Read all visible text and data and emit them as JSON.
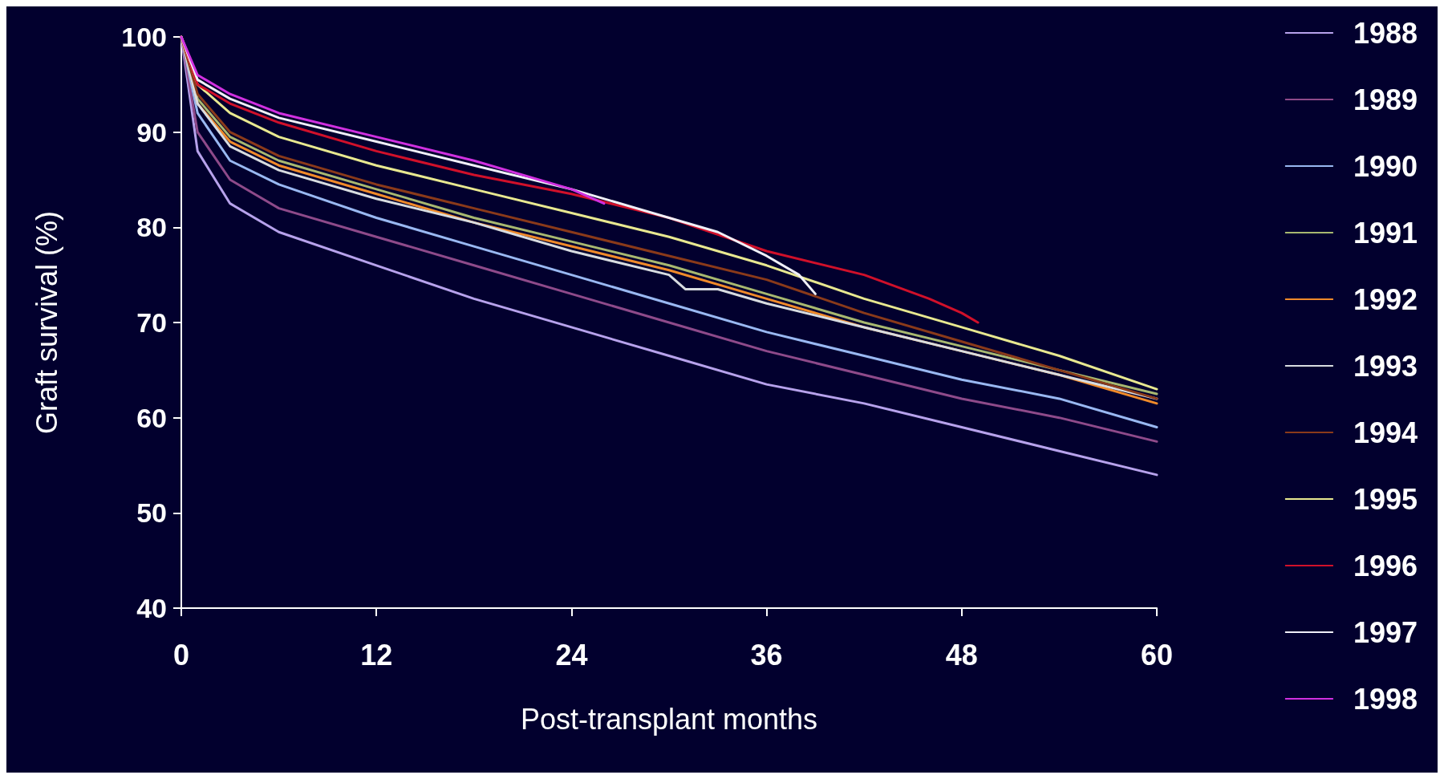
{
  "chart_data": {
    "type": "line",
    "xlabel": "Post-transplant months",
    "ylabel": "Graft survival (%)",
    "xlim": [
      0,
      60
    ],
    "xticks": [
      0,
      12,
      24,
      36,
      48,
      60
    ],
    "ylim": [
      40,
      100
    ],
    "yticks": [
      40,
      50,
      60,
      70,
      80,
      90,
      100
    ],
    "grid": false,
    "legend": "right",
    "marker": "none",
    "line_style": "solid",
    "x": [
      0,
      1,
      3,
      6,
      12,
      18,
      24,
      30,
      36,
      42,
      48,
      54,
      60
    ],
    "series": [
      {
        "name": "1988",
        "color": "#b7a2ec",
        "values": [
          100,
          88,
          82.5,
          79.5,
          76,
          72.5,
          69.5,
          66.5,
          63.5,
          61.5,
          59,
          56.5,
          54
        ]
      },
      {
        "name": "1989",
        "color": "#8e4a8a",
        "values": [
          100,
          90,
          85,
          82,
          79,
          76,
          73,
          70,
          67,
          64.5,
          62,
          60,
          57.5
        ]
      },
      {
        "name": "1990",
        "color": "#99b8f2",
        "values": [
          100,
          92,
          87,
          84.5,
          81,
          78,
          75,
          72,
          69,
          66.5,
          64,
          62,
          59
        ]
      },
      {
        "name": "1991",
        "color": "#a8b870",
        "values": [
          100,
          93.5,
          89.5,
          87,
          84,
          81,
          78.5,
          76,
          73,
          70,
          67.5,
          65,
          62.5
        ]
      },
      {
        "name": "1992",
        "color": "#f08a2a",
        "values": [
          100,
          93,
          89,
          86.5,
          83.5,
          80.5,
          78,
          75.5,
          72.5,
          69.5,
          67,
          64.5,
          61.5
        ]
      },
      {
        "name": "1993",
        "color": "#d8dce0",
        "x": [
          0,
          1,
          3,
          6,
          12,
          18,
          24,
          30,
          31,
          33,
          36,
          42,
          48,
          54,
          60
        ],
        "values": [
          100,
          93,
          88.5,
          86,
          83,
          80.5,
          77.5,
          75,
          73.5,
          73.5,
          72,
          69.5,
          67,
          64.5,
          62
        ]
      },
      {
        "name": "1994",
        "color": "#8a3a1a",
        "values": [
          100,
          94,
          90,
          87.5,
          84.5,
          82,
          79.5,
          77,
          74.5,
          71,
          68,
          65,
          62
        ]
      },
      {
        "name": "1995",
        "color": "#e8e890",
        "values": [
          100,
          95,
          92,
          89.5,
          86.5,
          84,
          81.5,
          79,
          76,
          72.5,
          69.5,
          66.5,
          63
        ]
      },
      {
        "name": "1996",
        "color": "#d0102a",
        "x": [
          0,
          1,
          3,
          6,
          12,
          18,
          24,
          30,
          36,
          42,
          46,
          48,
          49
        ],
        "values": [
          100,
          95,
          93,
          91,
          88,
          85.5,
          83.5,
          81,
          77.5,
          75,
          72.5,
          71,
          70
        ]
      },
      {
        "name": "1997",
        "color": "#f0f0f8",
        "x": [
          0,
          1,
          3,
          6,
          12,
          18,
          24,
          30,
          33,
          36,
          38,
          39
        ],
        "values": [
          100,
          95.5,
          93.5,
          91.5,
          89,
          86.5,
          84,
          81,
          79.5,
          77,
          75,
          73
        ]
      },
      {
        "name": "1998",
        "color": "#d030e0",
        "x": [
          0,
          1,
          3,
          6,
          12,
          18,
          24,
          26
        ],
        "values": [
          100,
          96,
          94,
          92,
          89.5,
          87,
          84,
          82.5
        ]
      }
    ]
  }
}
